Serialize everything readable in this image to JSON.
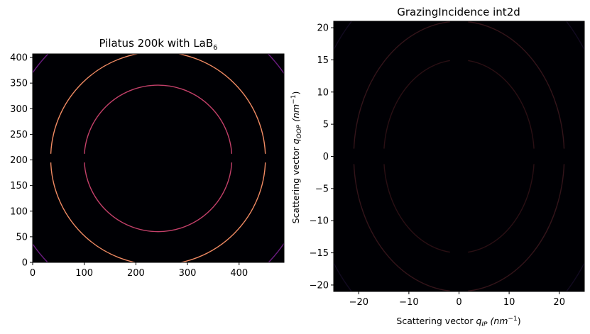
{
  "chart_data": [
    {
      "type": "heatmap",
      "title_main": "Pilatus 200k with LaB",
      "title_sub": "6",
      "xlabel": "",
      "ylabel": "",
      "xlim": [
        0,
        487
      ],
      "ylim": [
        0,
        407
      ],
      "xticks": [
        0,
        100,
        200,
        300,
        400
      ],
      "yticks": [
        0,
        50,
        100,
        150,
        200,
        250,
        300,
        350,
        400
      ],
      "background": "#000004",
      "center": [
        243,
        203
      ],
      "rings": [
        {
          "radius": 143,
          "color": "#c3406a"
        },
        {
          "radius": 208,
          "color": "#f08a63"
        },
        {
          "radius": 295,
          "color": "#6a1c80"
        }
      ],
      "module_gap_y": [
        195,
        212
      ]
    },
    {
      "type": "heatmap",
      "title": "GrazingIncidence int2d",
      "xlabel_text": "Scattering vector ",
      "xlabel_var": "q",
      "xlabel_sub": "IP",
      "xlabel_unit": " (nm",
      "xlabel_exp": "−1",
      "xlabel_close": ")",
      "ylabel_text": "Scattering vector ",
      "ylabel_var": "q",
      "ylabel_sub": "OOP",
      "ylabel_unit": " (nm",
      "ylabel_exp": "−1",
      "ylabel_close": ")",
      "xlim": [
        -25,
        25
      ],
      "ylim": [
        -21,
        21
      ],
      "xticks": [
        -20,
        -10,
        0,
        10,
        20
      ],
      "yticks": [
        -20,
        -15,
        -10,
        -5,
        0,
        5,
        10,
        15,
        20
      ],
      "background": "#000004",
      "rings": [
        {
          "q": 15,
          "color": "#2a0f14"
        },
        {
          "q": 21,
          "color": "#33141a"
        },
        {
          "q": 30,
          "color": "#120a20"
        }
      ]
    }
  ]
}
